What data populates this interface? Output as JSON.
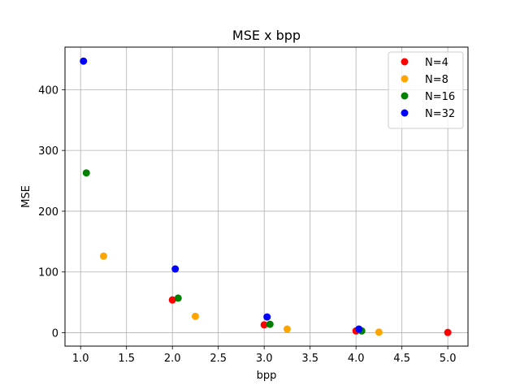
{
  "chart_data": {
    "type": "scatter",
    "title": "MSE x bpp",
    "xlabel": "bpp",
    "ylabel": "MSE",
    "xlim": [
      0.83,
      5.22
    ],
    "ylim": [
      -22,
      470
    ],
    "xticks": [
      1.0,
      1.5,
      2.0,
      2.5,
      3.0,
      3.5,
      4.0,
      4.5,
      5.0
    ],
    "xtick_labels": [
      "1.0",
      "1.5",
      "2.0",
      "2.5",
      "3.0",
      "3.5",
      "4.0",
      "4.5",
      "5.0"
    ],
    "yticks": [
      0,
      100,
      200,
      300,
      400
    ],
    "ytick_labels": [
      "0",
      "100",
      "200",
      "300",
      "400"
    ],
    "grid": true,
    "legend_position": "top-right",
    "series": [
      {
        "name": "N=4",
        "color": "#ff0000",
        "points": [
          [
            2.0,
            54
          ],
          [
            3.0,
            13
          ],
          [
            4.0,
            3
          ],
          [
            5.0,
            0.5
          ]
        ]
      },
      {
        "name": "N=8",
        "color": "#ffa500",
        "points": [
          [
            1.25,
            126
          ],
          [
            2.25,
            27
          ],
          [
            3.25,
            6
          ],
          [
            4.25,
            1
          ]
        ]
      },
      {
        "name": "N=16",
        "color": "#008000",
        "points": [
          [
            1.0625,
            263
          ],
          [
            2.0625,
            57
          ],
          [
            3.0625,
            14
          ],
          [
            4.0625,
            3
          ]
        ]
      },
      {
        "name": "N=32",
        "color": "#0000ff",
        "points": [
          [
            1.03125,
            447
          ],
          [
            2.03125,
            105
          ],
          [
            3.03125,
            26
          ],
          [
            4.03125,
            6
          ]
        ]
      }
    ]
  }
}
